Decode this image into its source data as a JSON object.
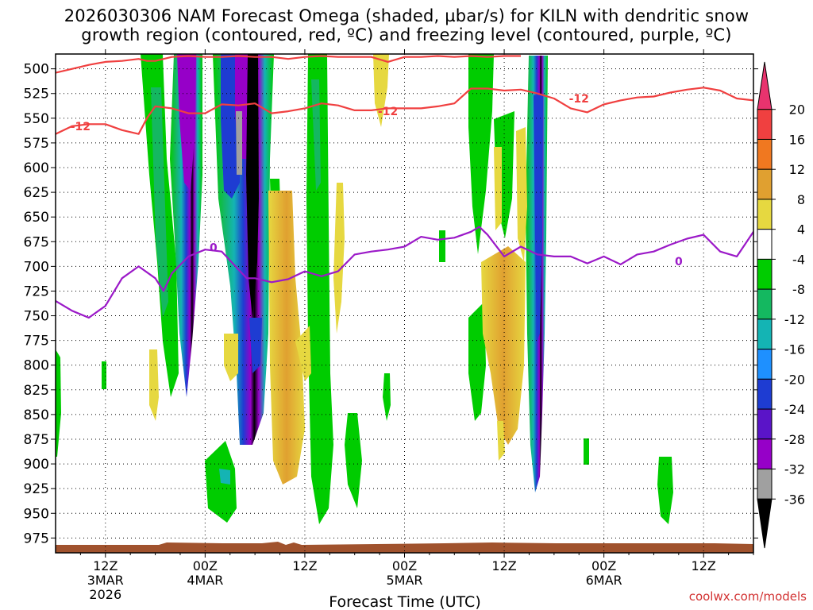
{
  "title_line1": "2026030306 NAM Forecast Omega (shaded, µbar/s) for KILN with dendritic snow",
  "title_line2": "growth region (contoured, red, ºC) and freezing level (contoured, purple, ºC)",
  "credit": "coolwx.com/models",
  "chart_data": {
    "type": "heatmap",
    "title": "2026030306 NAM Forecast Omega (shaded, µbar/s) for KILN with dendritic snow growth region (contoured, red, ºC) and freezing level (contoured, purple, ºC)",
    "xlabel": "Forecast Time (UTC)",
    "ylabel": "",
    "xlim_hours": [
      6,
      90
    ],
    "ylim_hPa": [
      485,
      990
    ],
    "y_ticks": [
      500,
      525,
      550,
      575,
      600,
      625,
      650,
      675,
      700,
      725,
      750,
      775,
      800,
      825,
      850,
      875,
      900,
      925,
      950,
      975
    ],
    "x_ticks": [
      {
        "hour": 12,
        "label": "12Z",
        "date": "3MAR",
        "year": "2026"
      },
      {
        "hour": 24,
        "label": "00Z",
        "date": "4MAR",
        "year": ""
      },
      {
        "hour": 36,
        "label": "12Z",
        "date": "",
        "year": ""
      },
      {
        "hour": 48,
        "label": "00Z",
        "date": "5MAR",
        "year": ""
      },
      {
        "hour": 60,
        "label": "12Z",
        "date": "",
        "year": ""
      },
      {
        "hour": 72,
        "label": "00Z",
        "date": "6MAR",
        "year": ""
      },
      {
        "hour": 84,
        "label": "12Z",
        "date": "",
        "year": ""
      }
    ],
    "colorbar": {
      "unit": "µbar/s",
      "labels": [
        "20",
        "16",
        "12",
        "8",
        "4",
        "-4",
        "-8",
        "-12",
        "-16",
        "-20",
        "-24",
        "-28",
        "-32",
        "-36"
      ],
      "colors": [
        "#e8336e",
        "#f04040",
        "#f07820",
        "#e0a030",
        "#e6d840",
        "#ffffff",
        "#00cc00",
        "#14b860",
        "#14b4b4",
        "#1e90ff",
        "#1e3cd2",
        "#5a14c8",
        "#9600c8",
        "#a0a0a0",
        "#000000"
      ]
    },
    "freezing_level": {
      "label": "0",
      "hours": [
        6,
        8,
        10,
        12,
        14,
        16,
        18,
        19,
        20,
        22,
        24,
        26,
        28,
        29,
        30,
        32,
        34,
        36,
        38,
        40,
        42,
        44,
        46,
        48,
        50,
        52,
        54,
        56,
        57,
        58,
        60,
        62,
        64,
        66,
        68,
        70,
        72,
        74,
        76,
        78,
        80,
        82,
        84,
        86,
        88,
        90
      ],
      "temps_level_hPa": [
        735,
        745,
        752,
        740,
        712,
        700,
        712,
        725,
        707,
        690,
        683,
        685,
        703,
        712,
        712,
        716,
        713,
        705,
        710,
        705,
        688,
        685,
        683,
        680,
        670,
        673,
        671,
        665,
        660,
        668,
        690,
        680,
        688,
        690,
        690,
        697,
        690,
        698,
        688,
        685,
        678,
        672,
        668,
        685,
        690,
        665
      ]
    },
    "dendritic_growth_region": [
      {
        "label": "-12",
        "hours": [
          6,
          8,
          10,
          12,
          14,
          16,
          17,
          18,
          20,
          22,
          24,
          26,
          28,
          30,
          32,
          34,
          36,
          38,
          40,
          42,
          44,
          46,
          48,
          50,
          52,
          54,
          56,
          58,
          60,
          62,
          64,
          66,
          68,
          70,
          72,
          74,
          76,
          78,
          80,
          82,
          84,
          86,
          88,
          90
        ],
        "temps_level_hPa": [
          566,
          558,
          556,
          556,
          562,
          566,
          550,
          538,
          540,
          545,
          545,
          536,
          537,
          535,
          545,
          543,
          540,
          535,
          537,
          542,
          542,
          540,
          540,
          540,
          538,
          535,
          520,
          520,
          522,
          521,
          525,
          530,
          540,
          544,
          536,
          532,
          529,
          528,
          524,
          521,
          519,
          522,
          530,
          532
        ]
      },
      {
        "label": "-12",
        "hours": [
          6,
          8,
          10,
          12,
          14,
          16,
          17,
          18,
          20,
          22,
          24,
          26,
          28,
          30,
          32,
          34,
          36,
          38,
          40,
          42,
          44,
          46,
          48,
          50,
          52,
          54,
          56,
          58,
          60,
          62
        ],
        "temps_level_hPa": [
          504,
          500,
          496,
          493,
          492,
          490,
          492,
          492,
          488,
          487,
          488,
          488,
          487,
          488,
          488,
          490,
          488,
          487,
          488,
          488,
          488,
          493,
          488,
          488,
          487,
          488,
          487,
          488,
          487,
          487
        ]
      }
    ]
  }
}
